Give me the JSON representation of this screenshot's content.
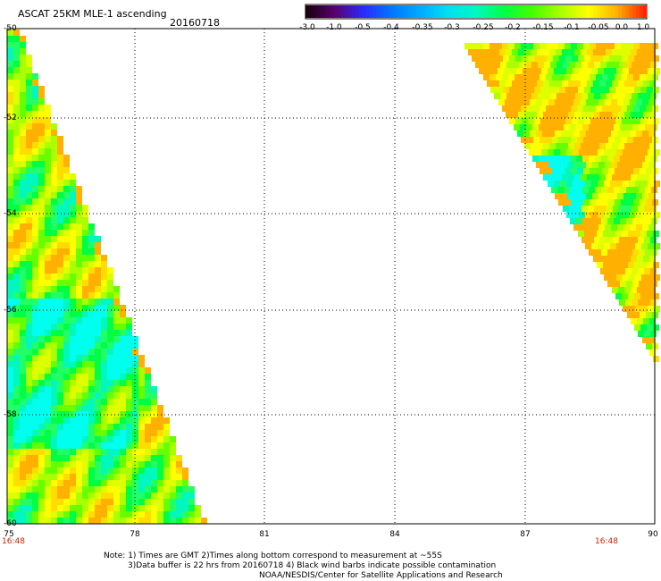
{
  "header": {
    "title": "ASCAT 25KM MLE-1 ascending",
    "date": "20160718"
  },
  "colorbar": {
    "labels": [
      "-3.0",
      "-1.0",
      "-0.5",
      "-0.4",
      "-0.35",
      "-0.3",
      "-0.25",
      "-0.2",
      "-0.15",
      "-0.1",
      "-0.05",
      "0.0",
      "1.0"
    ],
    "colors": [
      "#1a0010",
      "#5a0070",
      "#2a2aff",
      "#0077ff",
      "#00aaff",
      "#00e0f0",
      "#00f8c0",
      "#00ff44",
      "#44ff00",
      "#aaff00",
      "#ffff00",
      "#ffb000",
      "#ff2200"
    ]
  },
  "axes": {
    "x_ticks": [
      "75",
      "78",
      "81",
      "84",
      "87",
      "90"
    ],
    "y_ticks": [
      "-50",
      "-52",
      "-54",
      "-56",
      "-58",
      "-60"
    ]
  },
  "times": {
    "left": "16:48",
    "right": "16:48"
  },
  "notes": {
    "line1": "Note: 1) Times are GMT 2)Times along bottom correspond to measurement at ~55S",
    "line2": "3)Data buffer is 22 hrs from 20160718 4) Black wind barbs indicate possible contamination",
    "line3": "NOAA/NESDIS/Center for Satellite Applications and Research"
  }
}
